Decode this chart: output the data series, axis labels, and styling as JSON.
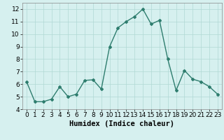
{
  "x": [
    0,
    1,
    2,
    3,
    4,
    5,
    6,
    7,
    8,
    9,
    10,
    11,
    12,
    13,
    14,
    15,
    16,
    17,
    18,
    19,
    20,
    21,
    22,
    23
  ],
  "y": [
    6.2,
    4.6,
    4.6,
    4.8,
    5.8,
    5.0,
    5.2,
    6.3,
    6.35,
    5.6,
    9.0,
    10.5,
    11.0,
    11.4,
    12.0,
    10.8,
    11.1,
    8.0,
    5.5,
    7.1,
    6.4,
    6.2,
    5.8,
    5.2
  ],
  "xlabel": "Humidex (Indice chaleur)",
  "ylim": [
    4,
    12.5
  ],
  "xlim": [
    -0.5,
    23.5
  ],
  "yticks": [
    4,
    5,
    6,
    7,
    8,
    9,
    10,
    11,
    12
  ],
  "xticks": [
    0,
    1,
    2,
    3,
    4,
    5,
    6,
    7,
    8,
    9,
    10,
    11,
    12,
    13,
    14,
    15,
    16,
    17,
    18,
    19,
    20,
    21,
    22,
    23
  ],
  "line_color": "#2e7d6e",
  "marker": "D",
  "markersize": 2.0,
  "linewidth": 1.0,
  "bg_color": "#d6f0ef",
  "grid_color": "#b0d8d4",
  "xlabel_fontsize": 7.5,
  "tick_fontsize": 6.5
}
